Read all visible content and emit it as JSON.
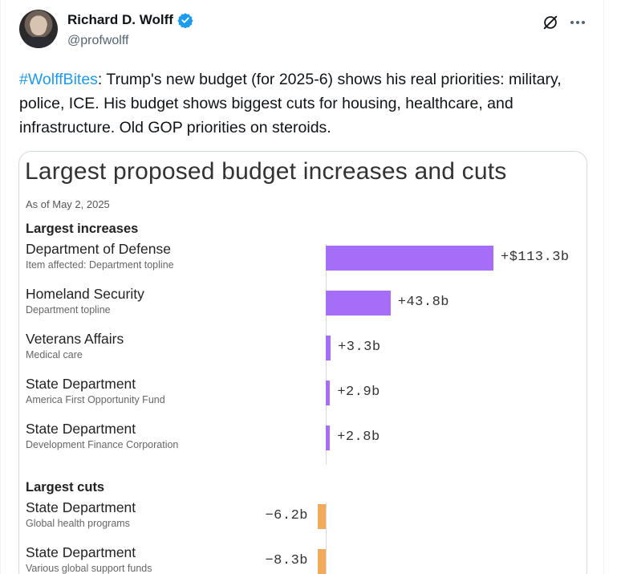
{
  "author": {
    "name": "Richard D. Wolff",
    "handle": "@profwolff",
    "verified_color": "#1d9bf0"
  },
  "header_icons": [
    "grok-icon",
    "more-icon"
  ],
  "tweet": {
    "hashtag": "#WolffBites",
    "text": ": Trump's new budget (for 2025-6) shows his real priorities: military, police, ICE. His budget shows biggest cuts for housing, healthcare, and infrastructure. Old GOP priorities on steroids."
  },
  "chart_data": {
    "type": "bar",
    "orientation": "horizontal",
    "title": "Largest proposed budget increases and cuts",
    "subtitle": "As of May 2, 2025",
    "units": "billions USD",
    "colors": {
      "increase": "#a66ef8",
      "cut": "#f2ab5c"
    },
    "groups": [
      {
        "label": "Largest increases",
        "items": [
          {
            "name": "Department of Defense",
            "sub": "Item affected: Department topline",
            "value": 113.3,
            "label": "+$113.3b"
          },
          {
            "name": "Homeland Security",
            "sub": "Department topline",
            "value": 43.8,
            "label": "+43.8b"
          },
          {
            "name": "Veterans Affairs",
            "sub": "Medical care",
            "value": 3.3,
            "label": "+3.3b"
          },
          {
            "name": "State Department",
            "sub": "America First Opportunity Fund",
            "value": 2.9,
            "label": "+2.9b"
          },
          {
            "name": "State Department",
            "sub": "Development Finance Corporation",
            "value": 2.8,
            "label": "+2.8b"
          }
        ]
      },
      {
        "label": "Largest cuts",
        "items": [
          {
            "name": "State Department",
            "sub": "Global health programs",
            "value": -6.2,
            "label": "−6.2b"
          },
          {
            "name": "State Department",
            "sub": "Various global support funds",
            "value": -8.3,
            "label": "−8.3b"
          }
        ]
      }
    ]
  }
}
